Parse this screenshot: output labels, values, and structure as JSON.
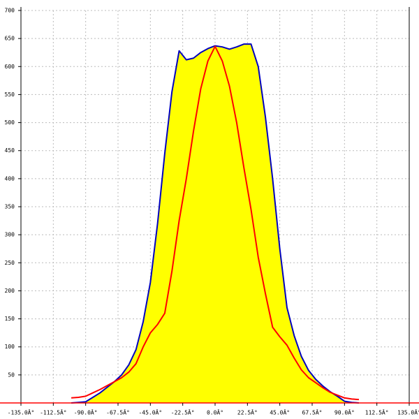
{
  "chart_data": {
    "type": "area",
    "x": [
      -100,
      -95,
      -90,
      -85,
      -80,
      -75,
      -70,
      -65,
      -60,
      -55,
      -50,
      -45,
      -40,
      -35,
      -30,
      -25,
      -20,
      -15,
      -10,
      -5,
      0,
      5,
      10,
      15,
      20,
      25,
      30,
      35,
      40,
      45,
      50,
      55,
      60,
      65,
      70,
      75,
      80,
      85,
      90,
      95,
      100
    ],
    "series": [
      {
        "color": "#0000c0",
        "fill": "#ffff00",
        "values": [
          0,
          1,
          2,
          10,
          18,
          28,
          38,
          50,
          68,
          95,
          145,
          215,
          320,
          445,
          555,
          628,
          612,
          615,
          625,
          632,
          637,
          635,
          631,
          635,
          640,
          640,
          600,
          510,
          400,
          275,
          170,
          120,
          83,
          58,
          42,
          30,
          20,
          12,
          3,
          1,
          0
        ]
      },
      {
        "color": "#ff0000",
        "values": [
          9,
          10,
          12,
          18,
          24,
          31,
          38,
          45,
          55,
          70,
          100,
          125,
          140,
          160,
          235,
          325,
          400,
          485,
          560,
          610,
          636,
          610,
          565,
          500,
          420,
          345,
          260,
          195,
          135,
          118,
          103,
          80,
          59,
          45,
          36,
          27,
          19,
          14,
          9,
          7,
          6
        ]
      }
    ],
    "xlim": [
      -135,
      135
    ],
    "xticks": [
      {
        "value": -135,
        "label": "-135.0Â°"
      },
      {
        "value": -112.5,
        "label": "-112.5Â°"
      },
      {
        "value": -90,
        "label": "-90.0Â°"
      },
      {
        "value": -67.5,
        "label": "-67.5Â°"
      },
      {
        "value": -45,
        "label": "-45.0Â°"
      },
      {
        "value": -22.5,
        "label": "-22.5Â°"
      },
      {
        "value": 0,
        "label": "0.0Â°"
      },
      {
        "value": 22.5,
        "label": "22.5Â°"
      },
      {
        "value": 45,
        "label": "45.0Â°"
      },
      {
        "value": 67.5,
        "label": "67.5Â°"
      },
      {
        "value": 90,
        "label": "90.0Â°"
      },
      {
        "value": 112.5,
        "label": "112.5Â°"
      },
      {
        "value": 135,
        "label": "135.0Â°"
      }
    ],
    "ylim": [
      0,
      700
    ],
    "yticks": [
      50,
      100,
      150,
      200,
      250,
      300,
      350,
      400,
      450,
      500,
      550,
      600,
      650,
      700
    ],
    "grid": true
  }
}
